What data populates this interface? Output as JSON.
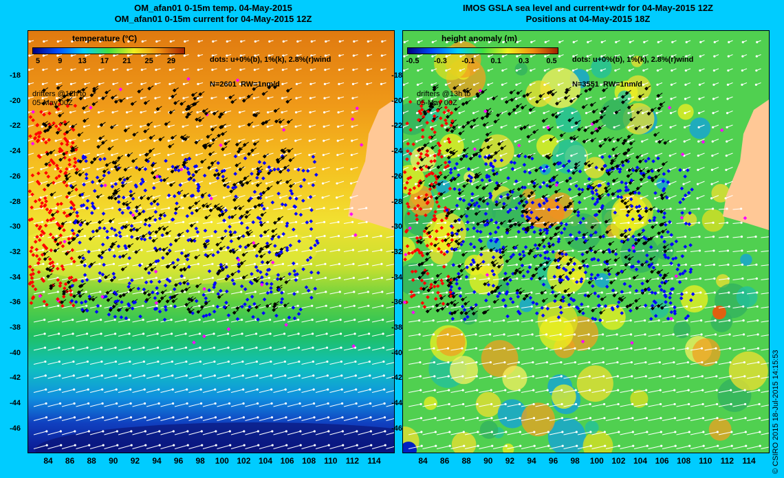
{
  "left": {
    "title_line1": "OM_afan01 0-15m temp. 04-May-2015",
    "title_line2": "OM_afan01 0-15m current for 04-May-2015 12Z",
    "legend_title": "temperature (°C)",
    "colorbar_ticks": [
      "5",
      "9",
      "13",
      "17",
      "21",
      "25",
      "29"
    ],
    "info_line1": "dots: u+0%(b), 1%(k), 2.8%(r)wind",
    "info_line2": "N=2601  RW=1nm/d",
    "drifter_note": "drifters @12h to\n05-May 00Z"
  },
  "right": {
    "title_line1": "IMOS GSLA sea level and current+wdr for 04-May-2015 12Z",
    "title_line2": "Positions at 04-May-2015 18Z",
    "legend_title": "height anomaly (m)",
    "colorbar_ticks": [
      "-0.5",
      "-0.3",
      "-0.1",
      "0.1",
      "0.3",
      "0.5"
    ],
    "info_line1": "dots: u+0%(b), 1%(k), 2.8%(r)wind",
    "info_line2": "N=3551  RW=1nm/d",
    "drifter_note": "drifters @13h to\n05-May 00Z"
  },
  "y_labels": [
    "-18",
    "-20",
    "-22",
    "-24",
    "-26",
    "-28",
    "-30",
    "-32",
    "-34",
    "-36",
    "-38",
    "-40",
    "-42",
    "-44",
    "-46"
  ],
  "x_labels": [
    "84",
    "86",
    "88",
    "90",
    "92",
    "94",
    "96",
    "98",
    "100",
    "102",
    "104",
    "106",
    "108",
    "110",
    "112",
    "114"
  ],
  "credit": "© CSIRO 2015    18-Jul-2015 14:15:53",
  "colors": {
    "background": "#00ccff",
    "land": "#ffc896",
    "vectors": "#ffffff",
    "dots_blue": "#0000ff",
    "dots_black": "#000000",
    "dots_red": "#ff0000",
    "dots_magenta": "#ff00ff"
  }
}
